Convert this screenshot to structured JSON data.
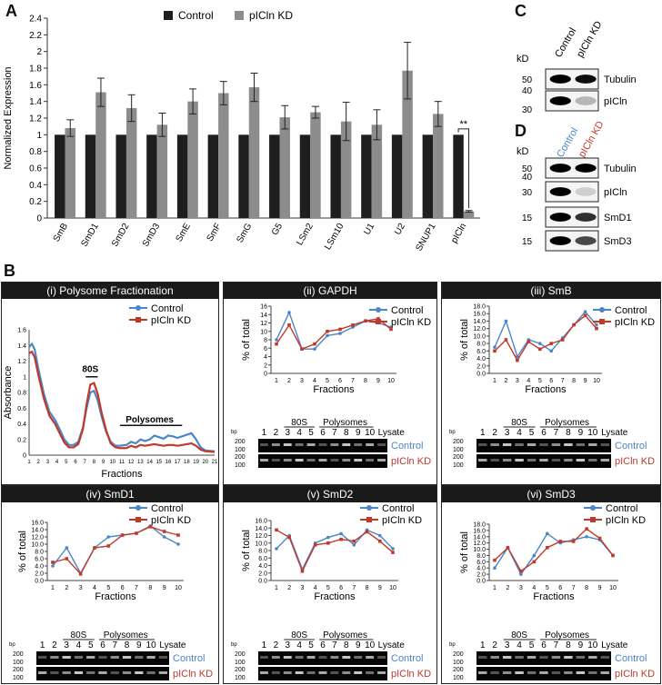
{
  "panel_labels": {
    "A": "A",
    "B": "B",
    "C": "C",
    "D": "D"
  },
  "colors": {
    "control": "#4a86c5",
    "kd": "#c0392b",
    "bar_control": "#1e1e1e",
    "bar_kd": "#8c8c8c"
  },
  "chart_data": [
    {
      "type": "bar",
      "panel": "A",
      "ylabel": "Normalized Expression",
      "ylim": [
        0,
        2.4
      ],
      "yticks": [
        "0",
        "0.2",
        "0.4",
        "0.6",
        "0.8",
        "1",
        "1.2",
        "1.4",
        "1.6",
        "1.8",
        "2",
        "2.2",
        "2.4"
      ],
      "categories": [
        "SmB",
        "SmD1",
        "SmD2",
        "SmD3",
        "SmE",
        "SmF",
        "SmG",
        "G5",
        "LSm2",
        "LSm10",
        "U1",
        "U2",
        "SNUP1",
        "pICln"
      ],
      "series": [
        {
          "name": "Control",
          "values": [
            1,
            1,
            1,
            1,
            1,
            1,
            1,
            1,
            1,
            1,
            1,
            1,
            1,
            1
          ],
          "errors": [
            0,
            0,
            0,
            0,
            0,
            0,
            0,
            0,
            0,
            0,
            0,
            0,
            0,
            0
          ]
        },
        {
          "name": "pICln KD",
          "values": [
            1.08,
            1.51,
            1.32,
            1.12,
            1.4,
            1.5,
            1.57,
            1.21,
            1.27,
            1.16,
            1.12,
            1.77,
            1.25,
            0.08
          ],
          "errors": [
            0.1,
            0.17,
            0.16,
            0.14,
            0.15,
            0.14,
            0.17,
            0.14,
            0.07,
            0.23,
            0.18,
            0.34,
            0.15,
            0.01
          ]
        }
      ],
      "annotation": "**"
    },
    {
      "type": "line",
      "panel": "B(i)",
      "title": "(i) Polysome Fractionation",
      "xlabel": "Fractions",
      "ylabel": "Absorbance",
      "ylim": [
        0,
        1.6
      ],
      "yticks": [
        "0",
        "0.2",
        "0.4",
        "0.6",
        "0.8",
        "1",
        "1.2",
        "1.4",
        "1.6"
      ],
      "xticks": [
        "1",
        "2",
        "3",
        "4",
        "5",
        "6",
        "7",
        "8",
        "9",
        "10",
        "11",
        "12",
        "13",
        "14",
        "15",
        "16",
        "17",
        "18",
        "19",
        "20",
        "21"
      ],
      "labels": {
        "peak": "80S",
        "polysomes": "Polysomes"
      },
      "series": [
        {
          "name": "Control",
          "x": [
            1,
            1.3,
            1.6,
            2,
            2.6,
            3.2,
            3.8,
            4.3,
            4.8,
            5.3,
            5.8,
            6.3,
            6.8,
            7.2,
            7.6,
            8,
            8.4,
            8.8,
            9.3,
            9.8,
            10.3,
            10.8,
            11.5,
            12,
            12.5,
            13,
            13.5,
            14,
            14.5,
            15,
            15.5,
            16,
            16.5,
            17,
            17.5,
            18,
            18.5,
            19,
            19.5,
            20,
            21
          ],
          "y": [
            1.38,
            1.42,
            1.35,
            1.1,
            0.78,
            0.55,
            0.45,
            0.33,
            0.2,
            0.13,
            0.13,
            0.17,
            0.35,
            0.6,
            0.8,
            0.82,
            0.7,
            0.5,
            0.3,
            0.17,
            0.12,
            0.12,
            0.13,
            0.17,
            0.15,
            0.2,
            0.18,
            0.2,
            0.25,
            0.23,
            0.21,
            0.25,
            0.24,
            0.22,
            0.24,
            0.26,
            0.28,
            0.2,
            0.1,
            0.06,
            0.05
          ]
        },
        {
          "name": "pICln KD",
          "x": [
            1,
            1.3,
            1.6,
            2,
            2.6,
            3.2,
            3.8,
            4.3,
            4.8,
            5.3,
            5.8,
            6.3,
            6.8,
            7.2,
            7.6,
            8,
            8.4,
            8.8,
            9.3,
            9.8,
            10.3,
            10.8,
            11.5,
            12,
            12.5,
            13,
            13.5,
            14,
            14.5,
            15,
            15.5,
            16,
            16.5,
            17,
            17.5,
            18,
            18.5,
            19,
            19.5,
            20,
            21
          ],
          "y": [
            1.3,
            1.32,
            1.25,
            1.02,
            0.72,
            0.5,
            0.4,
            0.28,
            0.16,
            0.1,
            0.1,
            0.14,
            0.33,
            0.65,
            0.9,
            0.92,
            0.78,
            0.55,
            0.32,
            0.15,
            0.1,
            0.09,
            0.09,
            0.12,
            0.1,
            0.13,
            0.12,
            0.13,
            0.14,
            0.13,
            0.12,
            0.13,
            0.13,
            0.12,
            0.13,
            0.14,
            0.15,
            0.12,
            0.07,
            0.05,
            0.04
          ]
        }
      ]
    },
    {
      "type": "line",
      "panel": "B(ii)",
      "title": "(ii) GAPDH",
      "xlabel": "Fractions",
      "ylabel": "% of total",
      "ylim": [
        0,
        16
      ],
      "yticks": [
        "0",
        "2",
        "4",
        "6",
        "8",
        "10",
        "12",
        "14",
        "16"
      ],
      "categories": [
        "1",
        "2",
        "3",
        "4",
        "5",
        "6",
        "7",
        "8",
        "9",
        "10"
      ],
      "series": [
        {
          "name": "Control",
          "values": [
            8,
            14.5,
            5.8,
            5.8,
            9,
            9.5,
            11,
            12.5,
            12,
            11
          ]
        },
        {
          "name": "pICln KD",
          "values": [
            7,
            11.5,
            5.8,
            7,
            10,
            10.5,
            11.5,
            12.5,
            13,
            10.5
          ]
        }
      ]
    },
    {
      "type": "line",
      "panel": "B(iii)",
      "title": "(iii) SmB",
      "xlabel": "Fractions",
      "ylabel": "% of total",
      "ylim": [
        0,
        18
      ],
      "yticks": [
        "0.0",
        "2.0",
        "4.0",
        "6.0",
        "8.0",
        "10.0",
        "12.0",
        "14.0",
        "16.0",
        "18.0"
      ],
      "categories": [
        "1",
        "2",
        "3",
        "4",
        "5",
        "6",
        "7",
        "8",
        "9",
        "10"
      ],
      "series": [
        {
          "name": "Control",
          "values": [
            7,
            14,
            4.5,
            9,
            8,
            6,
            9.5,
            13,
            16.5,
            13
          ]
        },
        {
          "name": "pICln KD",
          "values": [
            6,
            9,
            3.5,
            8.5,
            6.5,
            8,
            9,
            13,
            15.5,
            12
          ]
        }
      ]
    },
    {
      "type": "line",
      "panel": "B(iv)",
      "title": "(iv) SmD1",
      "xlabel": "Fractions",
      "ylabel": "% of total",
      "ylim": [
        0,
        16
      ],
      "yticks": [
        "0.0",
        "2.0",
        "4.0",
        "6.0",
        "8.0",
        "10.0",
        "12.0",
        "14.0",
        "16.0"
      ],
      "categories": [
        "1",
        "2",
        "3",
        "4",
        "5",
        "6",
        "7",
        "8",
        "9",
        "10"
      ],
      "series": [
        {
          "name": "Control",
          "values": [
            4,
            9,
            2,
            9,
            12,
            12.5,
            13,
            15,
            12,
            10
          ]
        },
        {
          "name": "pICln KD",
          "values": [
            5,
            6,
            1.8,
            9,
            9.5,
            12.5,
            13,
            14.8,
            13.5,
            12.5
          ]
        }
      ]
    },
    {
      "type": "line",
      "panel": "B(v)",
      "title": "(v) SmD2",
      "xlabel": "Fractions",
      "ylabel": "% of total",
      "ylim": [
        0,
        16
      ],
      "yticks": [
        "0.0",
        "2.0",
        "4.0",
        "6.0",
        "8.0",
        "10.0",
        "12.0",
        "14.0",
        "16.0"
      ],
      "categories": [
        "1",
        "2",
        "3",
        "4",
        "5",
        "6",
        "7",
        "8",
        "9",
        "10"
      ],
      "series": [
        {
          "name": "Control",
          "values": [
            8.5,
            12,
            3,
            10,
            11.5,
            12.5,
            9.5,
            13.5,
            12,
            8.5
          ]
        },
        {
          "name": "pICln KD",
          "values": [
            13.5,
            11.5,
            2.5,
            9.5,
            10,
            11,
            10.5,
            13,
            10.5,
            7.5
          ]
        }
      ]
    },
    {
      "type": "line",
      "panel": "B(vi)",
      "title": "(vi) SmD3",
      "xlabel": "Fractions",
      "ylabel": "% of total",
      "ylim": [
        0,
        18
      ],
      "yticks": [
        "0.0",
        "2.0",
        "4.0",
        "6.0",
        "8.0",
        "10.0",
        "12.0",
        "14.0",
        "16.0",
        "18.0"
      ],
      "categories": [
        "1",
        "2",
        "3",
        "4",
        "5",
        "6",
        "7",
        "8",
        "9",
        "10"
      ],
      "series": [
        {
          "name": "Control",
          "values": [
            4,
            10.5,
            2,
            8,
            15,
            12,
            13,
            14,
            13,
            8
          ]
        },
        {
          "name": "pICln KD",
          "values": [
            6.5,
            10.5,
            3,
            6,
            10.5,
            12.5,
            12.5,
            16.5,
            13.5,
            8
          ]
        }
      ]
    }
  ],
  "legend": {
    "control": "Control",
    "kd": "pICln KD"
  },
  "gels": {
    "lanes": [
      "1",
      "2",
      "3",
      "4",
      "5",
      "6",
      "7",
      "8",
      "9",
      "10"
    ],
    "lysate": "Lysate",
    "group_80s": "80S",
    "group_polysomes": "Polysomes",
    "bp": "bp",
    "markers_a": [
      "200",
      "100",
      "200",
      "100"
    ],
    "row_control": "Control",
    "row_kd": "pICln KD"
  },
  "blots": {
    "kd": "kD",
    "col_control": "Control",
    "col_kd": "pICln KD",
    "c_rows": [
      {
        "label": "Tubulin",
        "marker_top": "50",
        "marker_bottom": "40"
      },
      {
        "label": "pICln",
        "marker_top": "30"
      }
    ],
    "d_rows": [
      {
        "label": "Tubulin",
        "marker": "50"
      },
      {
        "label": "pICln",
        "marker_top": "40",
        "marker": "30"
      },
      {
        "label": "SmD1",
        "marker": "15"
      },
      {
        "label": "SmD3",
        "marker": "15"
      }
    ]
  },
  "panels_b": {
    "i": "(i) Polysome Fractionation",
    "ii": "(ii) GAPDH",
    "iii": "(iii) SmB",
    "iv": "(iv) SmD1",
    "v": "(v) SmD2",
    "vi": "(vi) SmD3"
  }
}
